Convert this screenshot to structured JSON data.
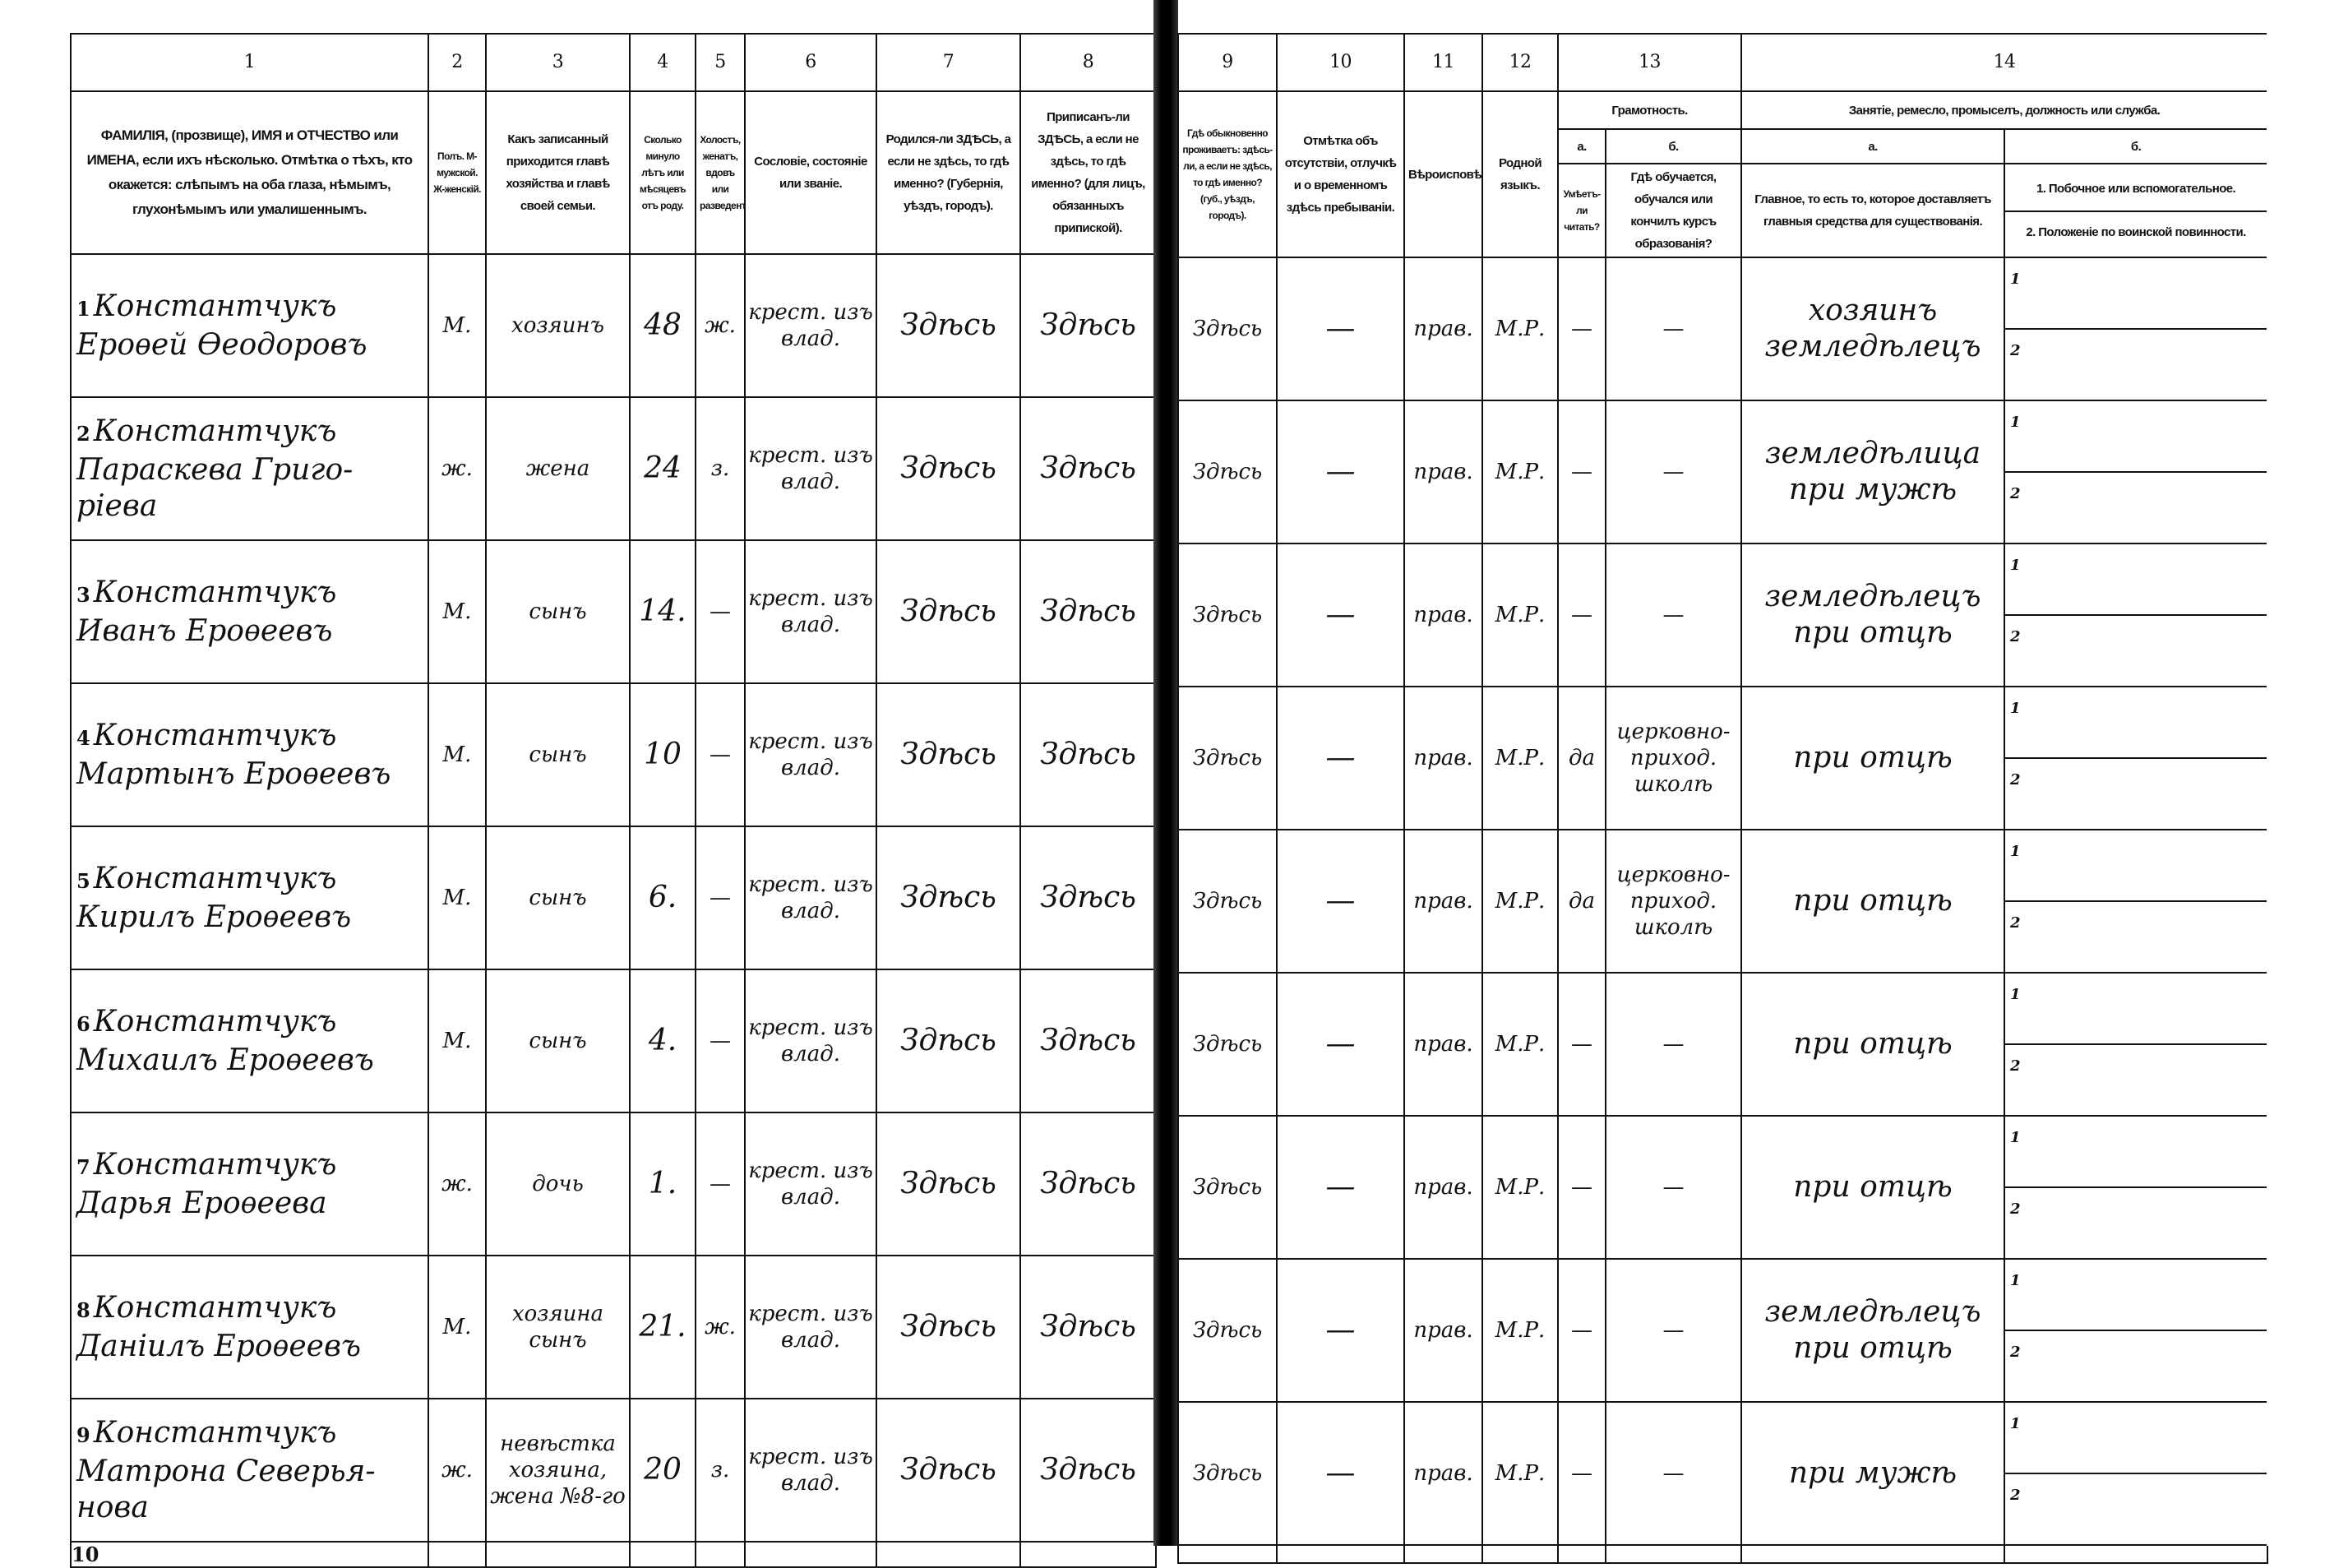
{
  "left_headers": {
    "numbers": [
      "1",
      "2",
      "3",
      "4",
      "5",
      "6",
      "7",
      "8"
    ],
    "col1": "ФАМИЛІЯ, (прозвище), ИМЯ и ОТЧЕСТВО или ИМЕНА, если ихъ нѣсколько. Отмѣтка о тѣхъ, кто окажется: слѣпымъ на оба глаза, нѣмымъ, глухонѣмымъ или умалишеннымъ.",
    "col2": "Полъ. М-мужской. Ж-женскій.",
    "col3": "Какъ записанный приходится главѣ хозяйства и главѣ своей семьи.",
    "col4": "Сколько минуло лѣтъ или мѣсяцевъ отъ роду.",
    "col5": "Холостъ, женатъ, вдовъ или разведенъ.",
    "col6": "Сословіе, состояніе или званіе.",
    "col7": "Родился-ли ЗДѢСЬ, а если не здѣсь, то гдѣ именно? (Губернія, уѣздъ, городъ).",
    "col8": "Приписанъ-ли ЗДѢСЬ, а если не здѣсь, то гдѣ именно? (для лицъ, обязанныхъ припиской)."
  },
  "right_headers": {
    "numbers": [
      "9",
      "10",
      "11",
      "12",
      "13",
      "14"
    ],
    "col9": "Гдѣ обыкновенно проживаетъ: здѣсь-ли, а если не здѣсь, то гдѣ именно? (губ., уѣздъ, городъ).",
    "col10": "Отмѣтка объ отсутствіи, отлучкѣ и о временномъ здѣсь пребываніи.",
    "col11": "Вѣроисповѣданіе.",
    "col12": "Родной языкъ.",
    "col13": "Грамотность.",
    "col13a_letter": "а.",
    "col13a": "Умѣетъ-ли читать?",
    "col13b_letter": "б.",
    "col13b": "Гдѣ обучается, обучался или кончилъ курсъ образованія?",
    "col14": "Занятіе, ремесло, промыселъ, должность или служба.",
    "col14a_letter": "а.",
    "col14a": "Главное, то есть то, которое доставляетъ главныя средства для существованія.",
    "col14b_letter": "б.",
    "col14b_1": "1. Побочное или вспомогательное.",
    "col14b_2": "2. Положеніе по воинской повинности.",
    "sub_labels": [
      "1",
      "2"
    ]
  },
  "rows": [
    {
      "n": "1",
      "name": "Константчукъ Ероѳей Ѳеодоровъ",
      "sex": "М.",
      "relation": "хозяинъ",
      "age": "48",
      "marital": "ж.",
      "estate": "крест. изъ влад.",
      "born": "Здѣсь",
      "registered": "Здѣсь",
      "resides": "Здѣсь",
      "absence": "—",
      "religion": "прав.",
      "language": "М.Р.",
      "literate": "—",
      "school": "—",
      "occupation": "хозяинъ земледѣлецъ"
    },
    {
      "n": "2",
      "name": "Константчукъ Параскева Григо-ріева",
      "sex": "ж.",
      "relation": "жена",
      "age": "24",
      "marital": "з.",
      "estate": "крест. изъ влад.",
      "born": "Здѣсь",
      "registered": "Здѣсь",
      "resides": "Здѣсь",
      "absence": "—",
      "religion": "прав.",
      "language": "М.Р.",
      "literate": "—",
      "school": "—",
      "occupation": "земледѣлица при мужѣ"
    },
    {
      "n": "3",
      "name": "Константчукъ Иванъ Ероѳеевъ",
      "sex": "М.",
      "relation": "сынъ",
      "age": "14.",
      "marital": "—",
      "estate": "крест. изъ влад.",
      "born": "Здѣсь",
      "registered": "Здѣсь",
      "resides": "Здѣсь",
      "absence": "—",
      "religion": "прав.",
      "language": "М.Р.",
      "literate": "—",
      "school": "—",
      "occupation": "земледѣлецъ при отцѣ"
    },
    {
      "n": "4",
      "name": "Константчукъ Мартынъ Ероѳеевъ",
      "sex": "М.",
      "relation": "сынъ",
      "age": "10",
      "marital": "—",
      "estate": "крест. изъ влад.",
      "born": "Здѣсь",
      "registered": "Здѣсь",
      "resides": "Здѣсь",
      "absence": "—",
      "religion": "прав.",
      "language": "М.Р.",
      "literate": "да",
      "school": "церковно-приход. школѣ",
      "occupation": "при отцѣ"
    },
    {
      "n": "5",
      "name": "Константчукъ Кирилъ Ероѳеевъ",
      "sex": "М.",
      "relation": "сынъ",
      "age": "6.",
      "marital": "—",
      "estate": "крест. изъ влад.",
      "born": "Здѣсь",
      "registered": "Здѣсь",
      "resides": "Здѣсь",
      "absence": "—",
      "religion": "прав.",
      "language": "М.Р.",
      "literate": "да",
      "school": "церковно-приход. школѣ",
      "occupation": "при отцѣ"
    },
    {
      "n": "6",
      "name": "Константчукъ Михаилъ Ероѳеевъ",
      "sex": "М.",
      "relation": "сынъ",
      "age": "4.",
      "marital": "—",
      "estate": "крест. изъ влад.",
      "born": "Здѣсь",
      "registered": "Здѣсь",
      "resides": "Здѣсь",
      "absence": "—",
      "religion": "прав.",
      "language": "М.Р.",
      "literate": "—",
      "school": "—",
      "occupation": "при отцѣ"
    },
    {
      "n": "7",
      "name": "Константчукъ Дарья Ероѳеева",
      "sex": "ж.",
      "relation": "дочь",
      "age": "1.",
      "marital": "—",
      "estate": "крест. изъ влад.",
      "born": "Здѣсь",
      "registered": "Здѣсь",
      "resides": "Здѣсь",
      "absence": "—",
      "religion": "прав.",
      "language": "М.Р.",
      "literate": "—",
      "school": "—",
      "occupation": "при отцѣ"
    },
    {
      "n": "8",
      "name": "Константчукъ Даніилъ Ероѳеевъ",
      "sex": "М.",
      "relation": "хозяина сынъ",
      "age": "21.",
      "marital": "ж.",
      "estate": "крест. изъ влад.",
      "born": "Здѣсь",
      "registered": "Здѣсь",
      "resides": "Здѣсь",
      "absence": "—",
      "religion": "прав.",
      "language": "М.Р.",
      "literate": "—",
      "school": "—",
      "occupation": "земледѣлецъ при отцѣ"
    },
    {
      "n": "9",
      "name": "Константчукъ Матрона Северья-нова",
      "sex": "ж.",
      "relation": "невѣстка хозяина, жена №8-го",
      "age": "20",
      "marital": "з.",
      "estate": "крест. изъ влад.",
      "born": "Здѣсь",
      "registered": "Здѣсь",
      "resides": "Здѣсь",
      "absence": "—",
      "religion": "прав.",
      "language": "М.Р.",
      "literate": "—",
      "school": "—",
      "occupation": "при мужѣ"
    }
  ],
  "tail_row_number": "10"
}
